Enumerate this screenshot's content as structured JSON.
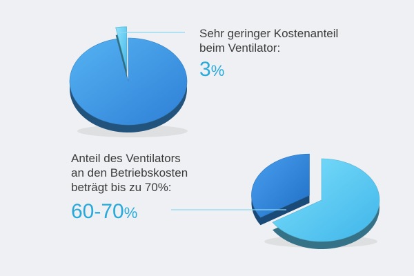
{
  "chart_data": [
    {
      "type": "pie",
      "slices": [
        {
          "value": 3,
          "exploded": true,
          "color": "#5ac8ef"
        },
        {
          "value": 97,
          "exploded": false,
          "color": "#3d96e3"
        }
      ],
      "callout": {
        "label": "Sehr geringer Kostenanteil\nbeim Ventilator:",
        "value": "3",
        "unit": "%"
      }
    },
    {
      "type": "pie",
      "slices": [
        {
          "value": 66,
          "exploded": false,
          "color": "#62d0f5"
        },
        {
          "value": 34,
          "exploded": true,
          "color": "#2f86d8"
        }
      ],
      "callout": {
        "label": "Anteil des Ventilators\nan den Betriebskosten\nbeträgt bis zu 70%:",
        "value": "60-70",
        "unit": "%"
      }
    }
  ],
  "colors": {
    "accent": "#29a9d9",
    "text": "#3b3b3b",
    "background": "#eef0f3",
    "leader_line": "#8fd8f2"
  }
}
